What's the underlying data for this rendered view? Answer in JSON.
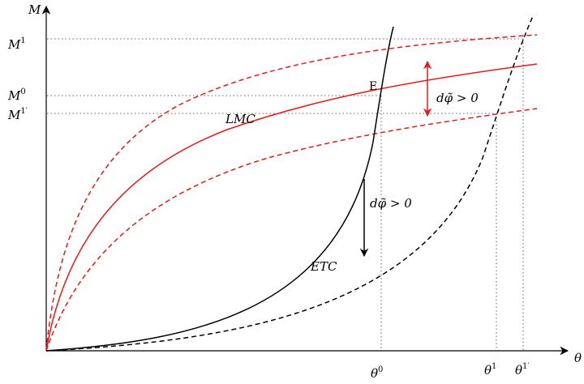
{
  "axes": {
    "y_label": "M",
    "x_label": "θ"
  },
  "y_ticks": {
    "m1": {
      "base": "M",
      "sup": "1"
    },
    "m0": {
      "base": "M",
      "sup": "0"
    },
    "m1p": {
      "base": "M",
      "sup": "1′"
    }
  },
  "x_ticks": {
    "t0": {
      "base": "θ",
      "sup": "0"
    },
    "t1": {
      "base": "θ",
      "sup": "1"
    },
    "t1p": {
      "base": "θ",
      "sup": "1′"
    }
  },
  "labels": {
    "equilibrium": "E",
    "lmc": "LMC",
    "etc": "ETC",
    "shift_lmc": "dφ̃ > 0",
    "shift_etc": "dφ̃ > 0"
  },
  "colors": {
    "lmc": "#e8191b",
    "etc": "#000000",
    "guide": "#666666"
  }
}
